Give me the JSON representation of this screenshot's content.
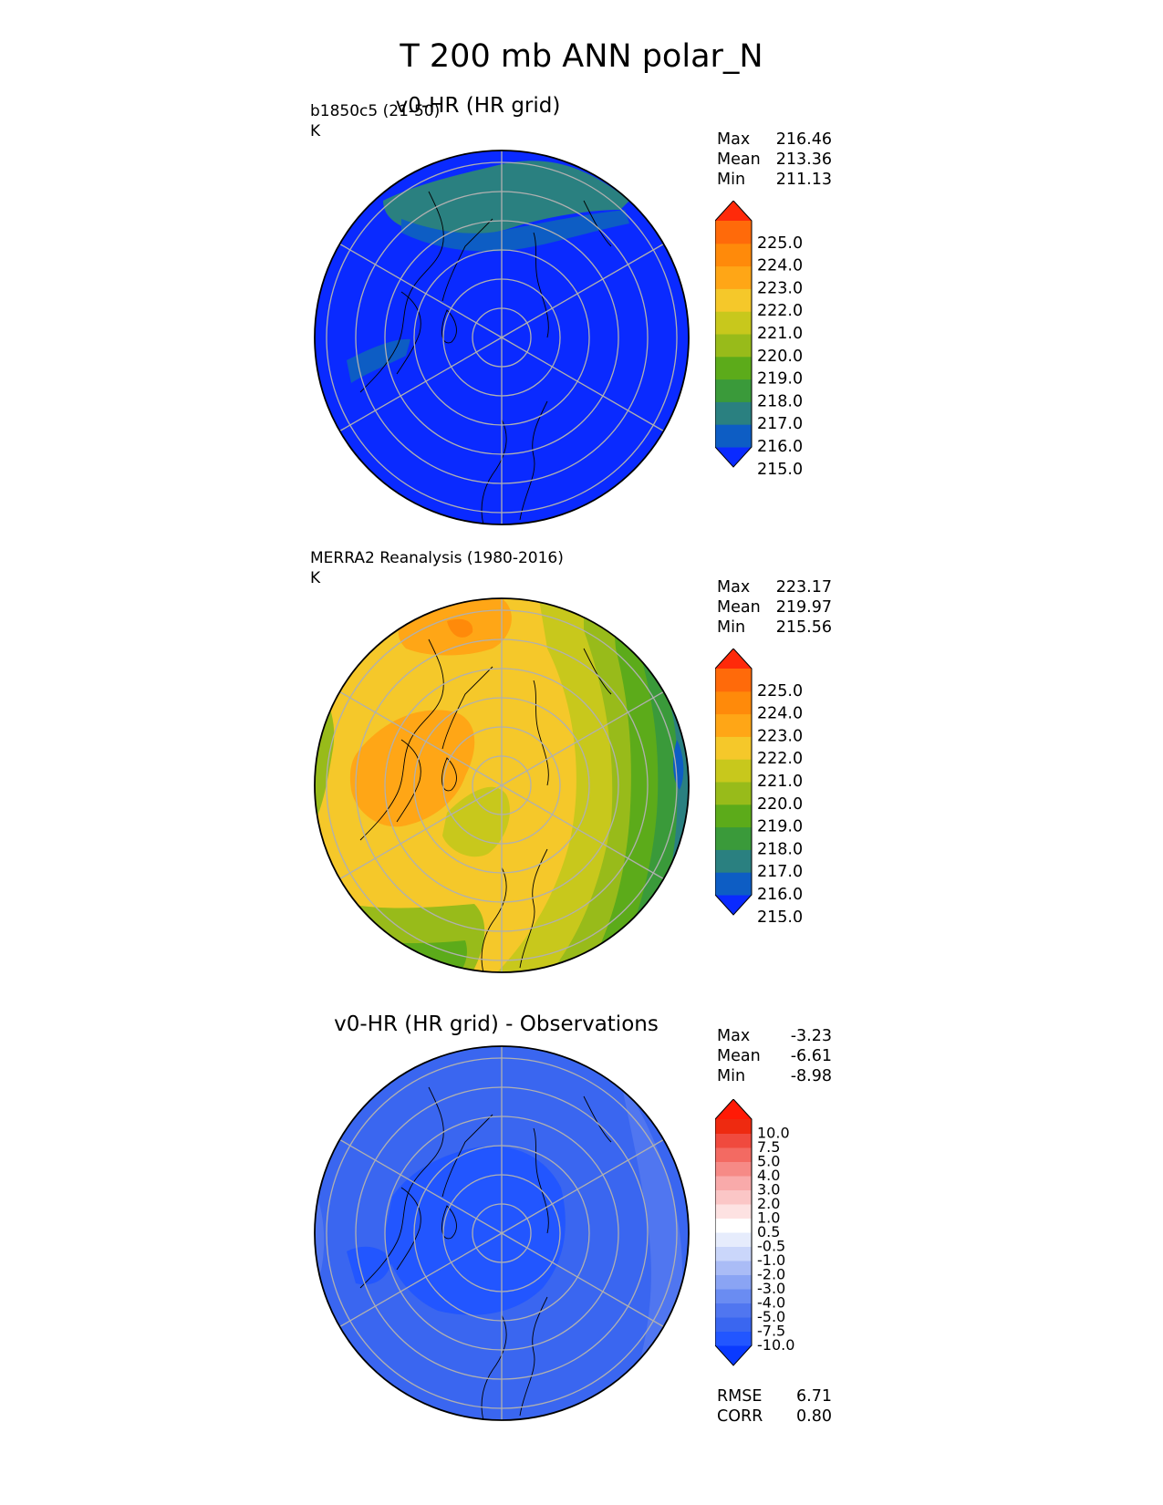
{
  "figure": {
    "title": "T 200 mb ANN polar_N"
  },
  "colors": {
    "temp_cmap": [
      "#0a2aff",
      "#0d5dc4",
      "#2a8080",
      "#3a9a3a",
      "#5cab1a",
      "#98bb1a",
      "#c8c81c",
      "#f5c82a",
      "#ffa616",
      "#ff8a0a",
      "#ff6a0a",
      "#ff2a0a"
    ],
    "diff_cmap": [
      "#0a3aff",
      "#2256ff",
      "#3a66f0",
      "#5076f0",
      "#6a8cf2",
      "#8aa4f4",
      "#aabcf6",
      "#cad6fa",
      "#e6ecfc",
      "#ffffff",
      "#fde2e2",
      "#fbc6c6",
      "#f9aaaa",
      "#f68a86",
      "#f36a62",
      "#f04a3e",
      "#ee2a10",
      "#ff1a06"
    ],
    "gridline": "#b0b0b0"
  },
  "chart_data": [
    {
      "type": "polar_map",
      "title": "v0-HR (HR grid)",
      "left_label": "b1850c5 (21-50)",
      "units": "K",
      "stats": {
        "max_label": "Max",
        "max": "216.46",
        "mean_label": "Mean",
        "mean": "213.36",
        "min_label": "Min",
        "min": "211.13"
      },
      "colorbar": {
        "ticks": [
          "225.0",
          "224.0",
          "223.0",
          "222.0",
          "221.0",
          "220.0",
          "219.0",
          "218.0",
          "217.0",
          "216.0",
          "215.0"
        ],
        "extend": "both"
      },
      "dominant_value": 215.0
    },
    {
      "type": "polar_map",
      "title": "",
      "left_label": "MERRA2 Reanalysis (1980-2016)",
      "units": "K",
      "stats": {
        "max_label": "Max",
        "max": "223.17",
        "mean_label": "Mean",
        "mean": "219.97",
        "min_label": "Min",
        "min": "215.56"
      },
      "colorbar": {
        "ticks": [
          "225.0",
          "224.0",
          "223.0",
          "222.0",
          "221.0",
          "220.0",
          "219.0",
          "218.0",
          "217.0",
          "216.0",
          "215.0"
        ],
        "extend": "both"
      },
      "dominant_value": 221.0
    },
    {
      "type": "polar_map",
      "title": "v0-HR (HR grid) - Observations",
      "left_label": "",
      "units": "",
      "stats": {
        "max_label": "Max",
        "max": "-3.23",
        "mean_label": "Mean",
        "mean": "-6.61",
        "min_label": "Min",
        "min": "-8.98"
      },
      "colorbar": {
        "ticks": [
          "10.0",
          "7.5",
          "5.0",
          "4.0",
          "3.0",
          "2.0",
          "1.0",
          "0.5",
          "-0.5",
          "-1.0",
          "-2.0",
          "-3.0",
          "-4.0",
          "-5.0",
          "-7.5",
          "-10.0"
        ],
        "extend": "both"
      },
      "extra_stats": {
        "rmse_label": "RMSE",
        "rmse": "6.71",
        "corr_label": "CORR",
        "corr": "0.80"
      },
      "dominant_value": -6.61
    }
  ]
}
